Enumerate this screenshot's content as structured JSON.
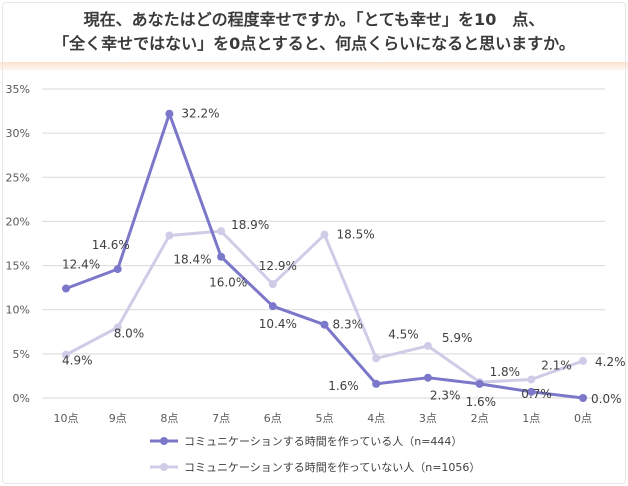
{
  "chart_data": {
    "type": "line",
    "title": "現在、あなたはどの程度幸せですか。「とても幸せ」を10　点、",
    "title_line2": "「全く幸せではない」を0点とすると、何点くらいになると思いますか。",
    "categories": [
      "10点",
      "9点",
      "8点",
      "7点",
      "6点",
      "5点",
      "4点",
      "3点",
      "2点",
      "1点",
      "0点"
    ],
    "ylim": [
      0,
      35
    ],
    "yticks": [
      "0%",
      "5%",
      "10%",
      "15%",
      "20%",
      "25%",
      "30%",
      "35%"
    ],
    "grid": true,
    "legend_position": "bottom",
    "series": [
      {
        "name": "コミュニケーションする時間を作っている人（n=444）",
        "color": "#7b77c9",
        "values": [
          12.4,
          14.6,
          32.2,
          16.0,
          10.4,
          8.3,
          1.6,
          2.3,
          1.6,
          0.7,
          0.0
        ]
      },
      {
        "name": "コミュニケーションする時間を作っていない人（n=1056）",
        "color": "#cfcce8",
        "values": [
          4.9,
          8.0,
          18.4,
          18.9,
          12.9,
          18.5,
          4.5,
          5.9,
          1.8,
          2.1,
          4.2
        ]
      }
    ]
  }
}
